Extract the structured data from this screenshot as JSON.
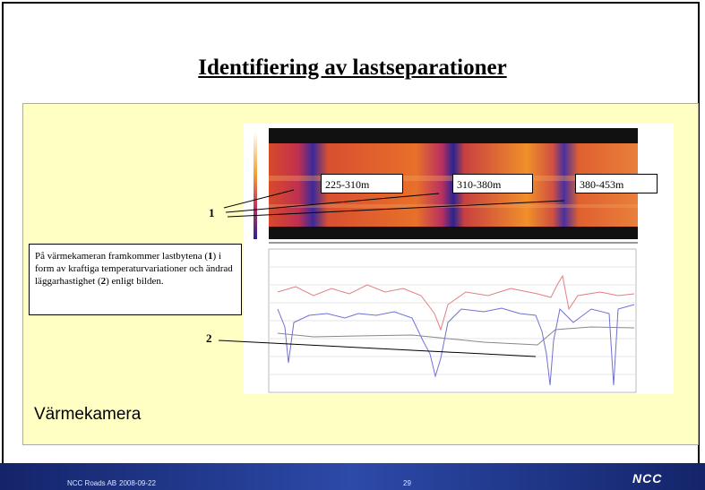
{
  "slide": {
    "title": "Identifiering av lastseparationer",
    "range_labels": [
      "225-310m",
      "310-380m",
      "380-453m"
    ],
    "marker_1": "1",
    "marker_2": "2",
    "text_box": [
      "På värmekameran framkommer lastbytena (",
      "1",
      ") i form av kraftiga temperaturvariationer och ändrad läggarhastighet (",
      "2",
      ") enligt bilden."
    ],
    "caption": "Värmekamera",
    "footer": {
      "company": "NCC Roads AB",
      "date": "2008-09-22",
      "page": "29",
      "logo": "NCC"
    }
  }
}
